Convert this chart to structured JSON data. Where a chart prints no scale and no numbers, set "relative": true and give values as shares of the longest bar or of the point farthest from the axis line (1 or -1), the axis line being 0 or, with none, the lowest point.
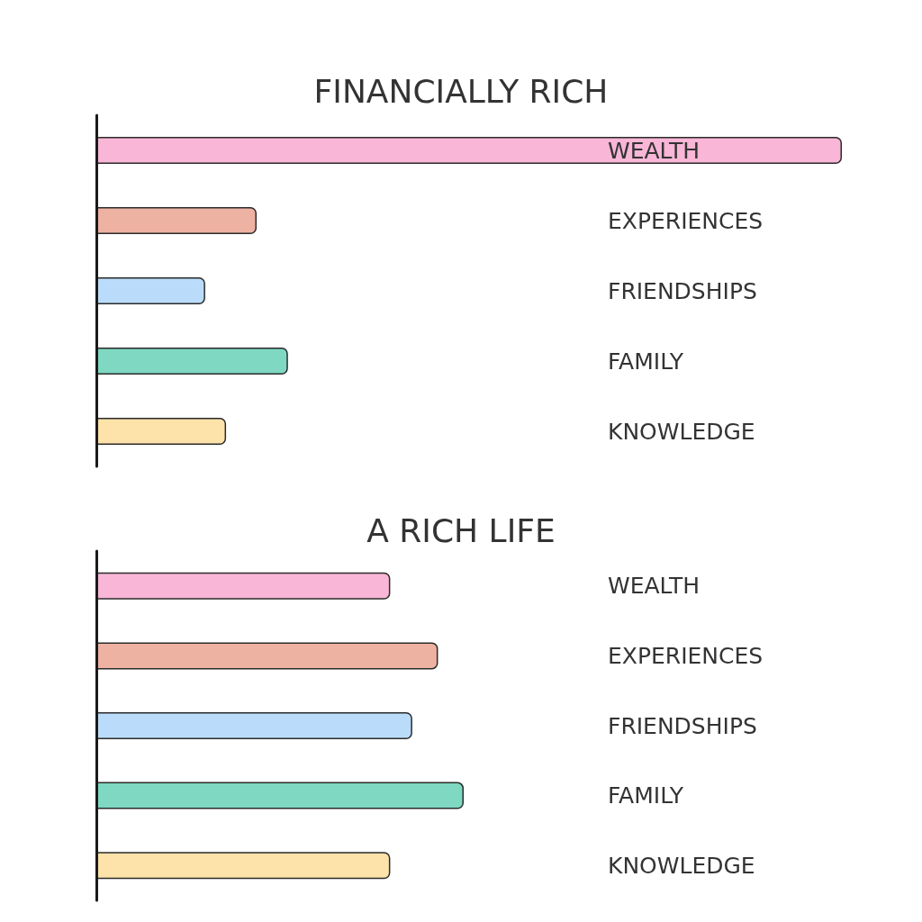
{
  "chart_data": [
    {
      "type": "bar",
      "title": "FINANCIALLY RICH",
      "orientation": "horizontal",
      "relative": true,
      "categories": [
        "WEALTH",
        "EXPERIENCES",
        "FRIENDSHIPS",
        "FAMILY",
        "KNOWLEDGE"
      ],
      "values": [
        1,
        0.215,
        0.146,
        0.257,
        0.174
      ],
      "colors": [
        "#f9b6d6",
        "#eeb2a2",
        "#badcfa",
        "#7ed8c2",
        "#fde2aa"
      ]
    },
    {
      "type": "bar",
      "title": "A RICH LIFE",
      "orientation": "horizontal",
      "relative": true,
      "categories": [
        "WEALTH",
        "EXPERIENCES",
        "FRIENDSHIPS",
        "FAMILY",
        "KNOWLEDGE"
      ],
      "values": [
        0.8,
        0.93,
        0.86,
        1,
        0.8
      ],
      "colors": [
        "#f9b6d6",
        "#eeb2a2",
        "#badcfa",
        "#7ed8c2",
        "#fde2aa"
      ]
    }
  ]
}
